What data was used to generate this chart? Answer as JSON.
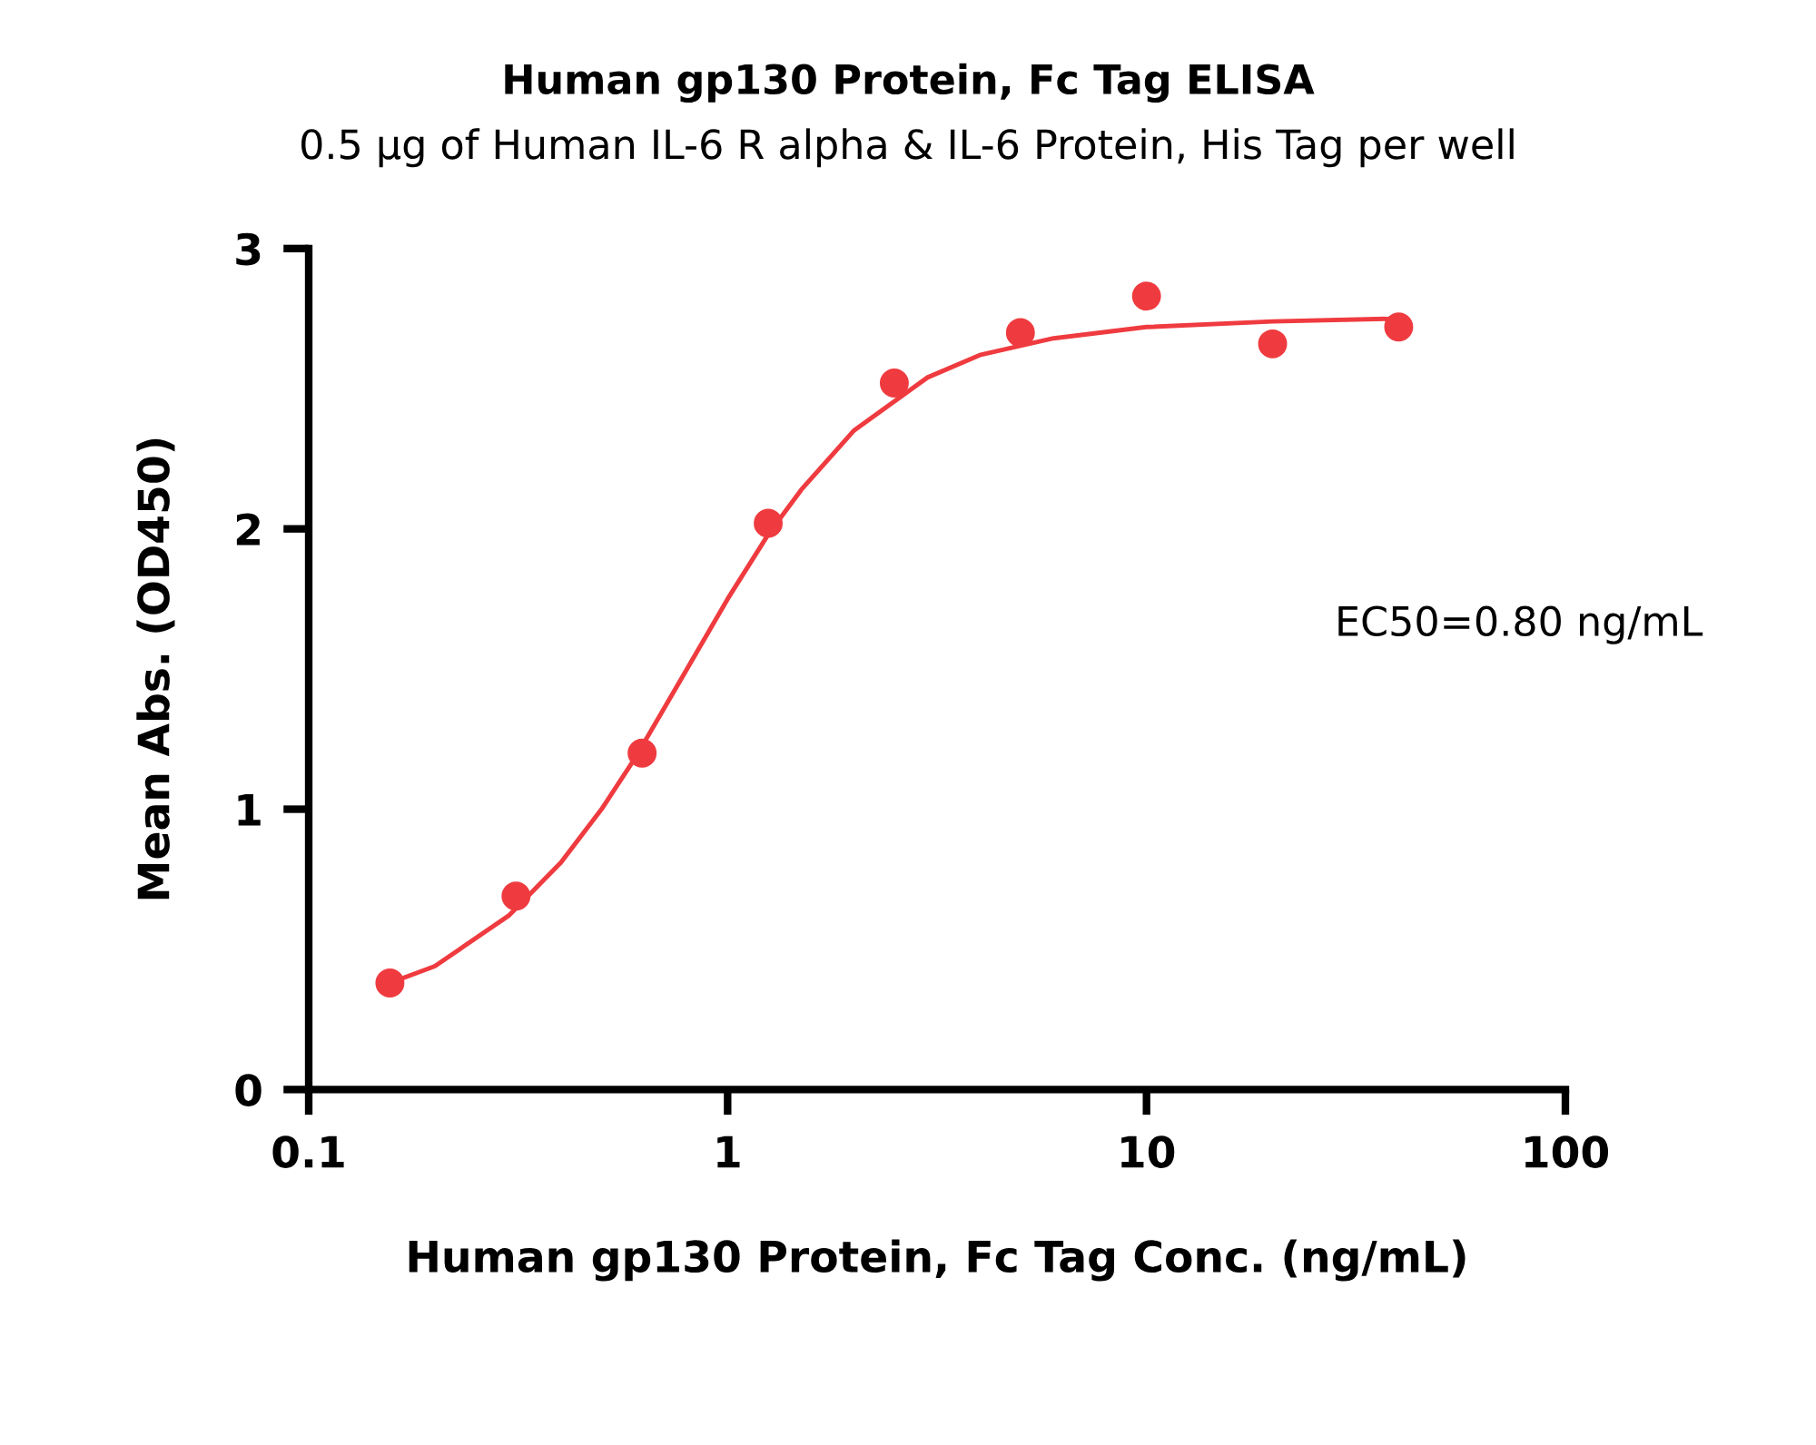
{
  "chart_data": {
    "type": "scatter",
    "title": "Human gp130 Protein, Fc Tag ELISA",
    "subtitle": "0.5 μg of Human IL-6 R alpha & IL-6 Protein, His Tag per well",
    "xlabel": "Human gp130 Protein, Fc Tag Conc. (ng/mL)",
    "ylabel": "Mean Abs. (OD450)",
    "log": "x",
    "xlim": [
      0.1,
      100
    ],
    "xticks": [
      0.1,
      1,
      10,
      100
    ],
    "ylim": [
      0,
      3
    ],
    "yticks": [
      0,
      1,
      2,
      3
    ],
    "grid": false,
    "series": [
      {
        "color": "#ef3b3f",
        "marker": "circle",
        "x": [
          0.15625,
          0.3125,
          0.625,
          1.25,
          2.5,
          5,
          10,
          20,
          40
        ],
        "values": [
          0.38,
          0.69,
          1.2,
          2.02,
          2.52,
          2.7,
          2.83,
          2.66,
          2.72
        ]
      },
      {
        "type": "line",
        "color": "#ef3b3f",
        "marker": "none",
        "line_style": "solid",
        "x": [
          0.156,
          0.2,
          0.3,
          0.4,
          0.5,
          0.6,
          0.8,
          1.0,
          1.25,
          1.5,
          2,
          3,
          4,
          6,
          10,
          20,
          40
        ],
        "values": [
          0.38,
          0.44,
          0.62,
          0.81,
          1.0,
          1.18,
          1.5,
          1.75,
          1.98,
          2.14,
          2.35,
          2.54,
          2.62,
          2.68,
          2.72,
          2.74,
          2.75
        ]
      }
    ],
    "annotations": [
      "EC50=0.80 ng/mL"
    ]
  }
}
